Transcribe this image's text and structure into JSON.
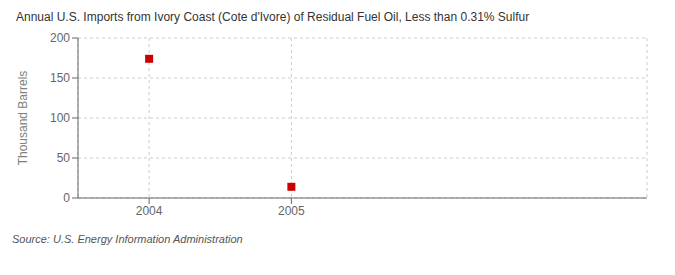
{
  "chart_data": {
    "type": "scatter",
    "title": "Annual U.S. Imports from Ivory Coast (Cote d'Ivore) of Residual Fuel Oil, Less than 0.31% Sulfur",
    "y_label": "Thousand Barrels",
    "source": "Source: U.S. Energy Information Administration",
    "x": [
      2004,
      2005
    ],
    "values": [
      174,
      14
    ],
    "color": "#cc0000",
    "marker": "square",
    "xlim": [
      2003.5,
      2007.5
    ],
    "xticks": [
      2004,
      2005
    ],
    "ylim": [
      0,
      200
    ],
    "yticks": [
      0,
      50,
      100,
      150,
      200
    ],
    "grid": true
  }
}
